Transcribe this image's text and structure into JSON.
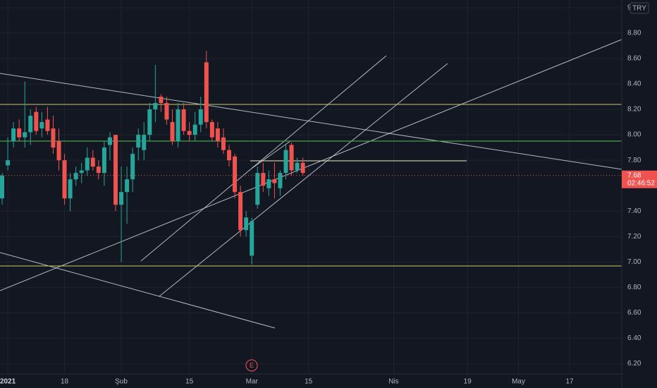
{
  "chart_data": {
    "type": "candlestick",
    "currency": "TRY",
    "current_price": 7.68,
    "countdown": "02:46:52",
    "earnings_marker": "E",
    "color_up": "#26a69a",
    "color_down": "#ef5350",
    "grid": true,
    "ylim": [
      6.12,
      9.06
    ],
    "yticks": [
      {
        "value": 6.2,
        "label": "6.20"
      },
      {
        "value": 6.4,
        "label": "6.40"
      },
      {
        "value": 6.6,
        "label": "6.60"
      },
      {
        "value": 6.8,
        "label": "6.80"
      },
      {
        "value": 7,
        "label": "7.00"
      },
      {
        "value": 7.2,
        "label": "7.20"
      },
      {
        "value": 7.4,
        "label": "7.40"
      },
      {
        "value": 7.8,
        "label": "7.80"
      },
      {
        "value": 8,
        "label": "8.00"
      },
      {
        "value": 8.2,
        "label": "8.20"
      },
      {
        "value": 8.4,
        "label": "8.40"
      },
      {
        "value": 8.6,
        "label": "8.60"
      },
      {
        "value": 8.8,
        "label": "8.80"
      },
      9
    ],
    "categories": [
      null,
      "2021",
      null,
      null,
      null,
      null,
      null,
      null,
      null,
      null,
      null,
      "18",
      null,
      null,
      null,
      null,
      null,
      null,
      null,
      null,
      null,
      "Şub",
      null,
      null,
      null,
      null,
      null,
      null,
      null,
      null,
      null,
      null,
      null,
      "15",
      null,
      null,
      null,
      null,
      null,
      null,
      null,
      null,
      null,
      null,
      "Mar",
      null,
      null,
      null,
      null,
      null,
      null,
      null,
      null,
      null,
      "15",
      null,
      null,
      null,
      null,
      null,
      null,
      null,
      null,
      null,
      null,
      null,
      null,
      null,
      null,
      "Nis",
      null,
      null,
      null,
      null,
      null,
      null,
      null,
      null,
      null,
      null,
      null,
      null,
      "19",
      null,
      null,
      null,
      null,
      null,
      null,
      null,
      null,
      "May",
      null,
      null,
      null,
      null,
      null,
      null,
      null,
      null,
      "17"
    ],
    "open": [
      7.5,
      7.76,
      7.95,
      8.05,
      7.98,
      8.02,
      8.18,
      8.05,
      8.12,
      8.05,
      7.95,
      7.8,
      7.5,
      7.65,
      7.7,
      7.72,
      7.82,
      7.75,
      7.7,
      7.92,
      8.0,
      7.45,
      7.55,
      7.65,
      7.9,
      7.88,
      8.0,
      8.2,
      8.3,
      8.25,
      8.1,
      7.95,
      8.2,
      8.03,
      8.0,
      8.08,
      8.57,
      8.1,
      8.05,
      7.98,
      7.88,
      7.83,
      7.55,
      7.25,
      7.05,
      7.45,
      7.7,
      7.58,
      7.65,
      7.58,
      7.7,
      7.92,
      7.72,
      7.78,
      null,
      null,
      null,
      null,
      null,
      null,
      null,
      null,
      null,
      null,
      null,
      null,
      null,
      null,
      null,
      null,
      null,
      null,
      null,
      null,
      null,
      null,
      null,
      null,
      null,
      null,
      null,
      null,
      null,
      null,
      null,
      null,
      null,
      null,
      null,
      null,
      null,
      null,
      null,
      null,
      null,
      null,
      null,
      null,
      null,
      null,
      null
    ],
    "high": [
      7.7,
      7.98,
      8.1,
      8.12,
      8.42,
      8.2,
      8.22,
      8.18,
      8.22,
      8.15,
      8.05,
      7.85,
      7.7,
      7.75,
      7.78,
      7.9,
      7.88,
      7.8,
      7.95,
      8.02,
      8.0,
      7.75,
      7.75,
      7.9,
      8.05,
      8.1,
      8.25,
      8.55,
      8.32,
      8.3,
      8.2,
      8.25,
      8.25,
      8.1,
      8.18,
      8.3,
      8.66,
      8.12,
      8.1,
      8.05,
      7.92,
      7.85,
      7.6,
      7.4,
      7.35,
      7.75,
      7.78,
      7.72,
      7.78,
      7.72,
      7.92,
      7.94,
      7.82,
      7.82,
      null,
      null,
      null,
      null,
      null,
      null,
      null,
      null,
      null,
      null,
      null,
      null,
      null,
      null,
      null,
      null,
      null,
      null,
      null,
      null,
      null,
      null,
      null,
      null,
      null,
      null,
      null,
      null,
      null,
      null,
      null,
      null,
      null,
      null,
      null,
      null,
      null,
      null,
      null,
      null,
      null,
      null,
      null,
      null,
      null,
      null,
      null
    ],
    "low": [
      7.45,
      7.72,
      7.9,
      7.95,
      7.9,
      7.92,
      8.0,
      7.98,
      8.0,
      7.85,
      7.72,
      7.45,
      7.4,
      7.6,
      7.62,
      7.68,
      7.72,
      7.65,
      7.6,
      7.8,
      7.4,
      7.0,
      7.3,
      7.55,
      7.8,
      7.8,
      7.95,
      8.1,
      8.18,
      8.08,
      7.92,
      7.9,
      8.0,
      7.95,
      7.95,
      8.02,
      8.05,
      7.95,
      7.9,
      7.85,
      7.75,
      7.5,
      7.2,
      7.2,
      6.98,
      7.42,
      7.55,
      7.52,
      7.5,
      7.52,
      7.65,
      7.68,
      7.7,
      7.68,
      null,
      null,
      null,
      null,
      null,
      null,
      null,
      null,
      null,
      null,
      null,
      null,
      null,
      null,
      null,
      null,
      null,
      null,
      null,
      null,
      null,
      null,
      null,
      null,
      null,
      null,
      null,
      null,
      null,
      null,
      null,
      null,
      null,
      null,
      null,
      null,
      null,
      null,
      null,
      null,
      null,
      null,
      null,
      null,
      null,
      null,
      null
    ],
    "close": [
      7.68,
      7.8,
      8.05,
      7.98,
      8.02,
      8.15,
      8.03,
      8.1,
      8.03,
      7.9,
      7.8,
      7.5,
      7.65,
      7.7,
      7.72,
      7.82,
      7.75,
      7.7,
      7.9,
      7.98,
      7.45,
      7.55,
      7.65,
      7.85,
      8.0,
      8.0,
      8.2,
      8.25,
      8.25,
      8.12,
      7.95,
      8.2,
      8.03,
      8.0,
      8.08,
      8.2,
      8.1,
      7.98,
      7.95,
      7.88,
      7.8,
      7.55,
      7.25,
      7.35,
      7.32,
      7.7,
      7.6,
      7.65,
      7.62,
      7.7,
      7.88,
      7.72,
      7.78,
      7.7,
      null,
      null,
      null,
      null,
      null,
      null,
      null,
      null,
      null,
      null,
      null,
      null,
      null,
      null,
      null,
      null,
      null,
      null,
      null,
      null,
      null,
      null,
      null,
      null,
      null,
      null,
      null,
      null,
      null,
      null,
      null,
      null,
      null,
      null,
      null,
      null,
      null,
      null,
      null,
      null,
      null,
      null,
      null,
      null,
      null,
      null,
      null
    ]
  }
}
